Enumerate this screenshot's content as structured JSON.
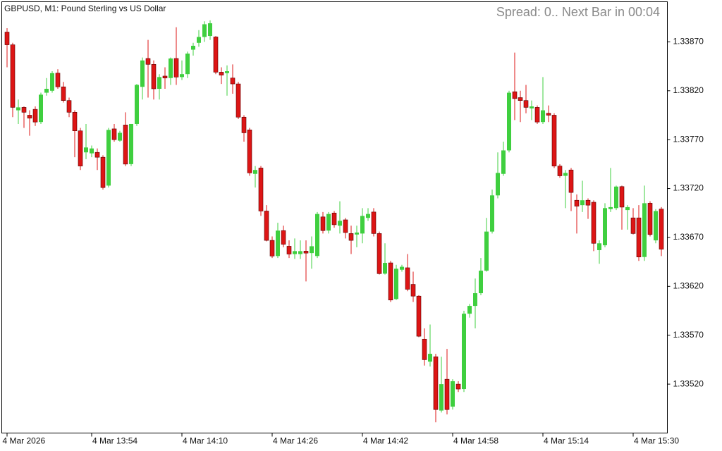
{
  "chart_data": {
    "type": "candlestick",
    "title": "GBPUSD, M1:  Pound Sterling vs US Dollar",
    "annotation": "Spread: 0.. Next Bar in 00:04",
    "up_color": "#3fcf3f",
    "down_color": "#dd1515",
    "categories": [
      "4 Mar 2026",
      null,
      null,
      null,
      null,
      null,
      null,
      null,
      null,
      null,
      null,
      null,
      null,
      null,
      null,
      "4 Mar 13:54",
      null,
      null,
      null,
      null,
      null,
      null,
      null,
      null,
      null,
      null,
      null,
      null,
      null,
      null,
      null,
      "4 Mar 14:10",
      null,
      null,
      null,
      null,
      null,
      null,
      null,
      null,
      null,
      null,
      null,
      null,
      null,
      null,
      null,
      "4 Mar 14:26",
      null,
      null,
      null,
      null,
      null,
      null,
      null,
      null,
      null,
      null,
      null,
      null,
      null,
      null,
      null,
      "4 Mar 14:42",
      null,
      null,
      null,
      null,
      null,
      null,
      null,
      null,
      null,
      null,
      null,
      null,
      null,
      null,
      null,
      "4 Mar 14:58",
      null,
      null,
      null,
      null,
      null,
      null,
      null,
      null,
      null,
      null,
      null,
      null,
      null,
      null,
      null,
      "4 Mar 15:14",
      null,
      null,
      null,
      null,
      null,
      null,
      null,
      null,
      null,
      null,
      null,
      null,
      null,
      null,
      null,
      "4 Mar 15:30",
      null,
      null,
      null,
      null,
      null
    ],
    "open": [
      1.3388,
      1.33867,
      1.338,
      1.33803,
      1.33795,
      1.33801,
      1.33788,
      1.33818,
      1.3382,
      1.33838,
      1.33824,
      1.3381,
      1.33798,
      1.33779,
      1.33757,
      1.33756,
      1.33757,
      1.33752,
      1.33723,
      1.33781,
      1.33769,
      1.33785,
      1.33745,
      1.33786,
      1.33824,
      1.33853,
      1.33847,
      1.33822,
      1.33835,
      1.33833,
      1.33853,
      1.33834,
      1.33837,
      1.33862,
      1.33869,
      1.33875,
      1.33876,
      1.33875,
      1.33839,
      1.33838,
      1.33833,
      1.33827,
      1.33793,
      1.3378,
      1.33735,
      1.33741,
      1.33697,
      1.33667,
      1.33651,
      1.33677,
      1.33661,
      1.33653,
      1.33653,
      1.33656,
      1.33654,
      1.33651,
      1.33691,
      1.33677,
      1.33695,
      1.33682,
      1.33688,
      1.33674,
      1.33673,
      1.33674,
      1.3369,
      1.33696,
      1.33674,
      1.33633,
      1.33644,
      1.33607,
      1.33637,
      1.33639,
      1.33622,
      1.3361,
      1.33566,
      1.33543,
      1.33548,
      1.33493,
      1.33525,
      1.33497,
      1.3352,
      1.33515,
      1.33592,
      1.336,
      1.33613,
      1.33636,
      1.33676,
      1.33713,
      1.33735,
      1.33759,
      1.33819,
      1.33813,
      1.3381,
      1.33802,
      1.33803,
      1.33788,
      1.33797,
      1.33795,
      1.33743,
      1.33733,
      1.33739,
      1.33708,
      1.33703,
      1.33708,
      1.33706,
      1.33657,
      1.33662,
      1.33699,
      1.337,
      1.33722,
      1.33698,
      1.3369,
      1.3369,
      1.3365,
      1.33705,
      1.33667,
      1.33699
    ],
    "high": [
      1.33884,
      1.33869,
      1.33811,
      1.33804,
      1.338,
      1.33804,
      1.33818,
      1.33833,
      1.3384,
      1.33842,
      1.33829,
      1.33813,
      1.338,
      1.33782,
      1.33786,
      1.33764,
      1.33761,
      1.33754,
      1.33782,
      1.33786,
      1.33779,
      1.33798,
      1.33786,
      1.33827,
      1.33854,
      1.33872,
      1.33851,
      1.33837,
      1.33844,
      1.33854,
      1.33885,
      1.33851,
      1.3386,
      1.33869,
      1.33882,
      1.33891,
      1.33892,
      1.33876,
      1.33844,
      1.33846,
      1.33847,
      1.33829,
      1.33795,
      1.33782,
      1.33743,
      1.33743,
      1.33703,
      1.33671,
      1.33685,
      1.33682,
      1.33667,
      1.33669,
      1.33667,
      1.33667,
      1.33671,
      1.33696,
      1.33696,
      1.33696,
      1.33697,
      1.33707,
      1.3369,
      1.33682,
      1.33682,
      1.337,
      1.337,
      1.337,
      1.33676,
      1.33664,
      1.33646,
      1.33642,
      1.33642,
      1.33653,
      1.33635,
      1.33611,
      1.33577,
      1.33581,
      1.33551,
      1.33548,
      1.33556,
      1.33525,
      1.33523,
      1.33595,
      1.33602,
      1.33628,
      1.33649,
      1.3369,
      1.33719,
      1.33757,
      1.33768,
      1.3382,
      1.33859,
      1.3382,
      1.33826,
      1.3381,
      1.33805,
      1.33834,
      1.33805,
      1.33797,
      1.33745,
      1.33739,
      1.33741,
      1.33714,
      1.33728,
      1.3371,
      1.33708,
      1.33667,
      1.33705,
      1.33741,
      1.33723,
      1.33723,
      1.33703,
      1.337,
      1.33703,
      1.33723,
      1.33707,
      1.33699,
      1.33701
    ],
    "low": [
      1.33844,
      1.33793,
      1.33786,
      1.33782,
      1.33774,
      1.33784,
      1.33786,
      1.33815,
      1.33818,
      1.33822,
      1.33808,
      1.33793,
      1.33752,
      1.33739,
      1.3375,
      1.33752,
      1.33739,
      1.33719,
      1.33721,
      1.33768,
      1.33768,
      1.33743,
      1.33743,
      1.33784,
      1.33811,
      1.33813,
      1.33811,
      1.33811,
      1.33822,
      1.33826,
      1.33826,
      1.33831,
      1.33833,
      1.33856,
      1.33865,
      1.3387,
      1.33872,
      1.33837,
      1.33827,
      1.33815,
      1.33817,
      1.33791,
      1.33768,
      1.33733,
      1.33721,
      1.33692,
      1.33666,
      1.33649,
      1.33649,
      1.3366,
      1.33649,
      1.33648,
      1.33648,
      1.33625,
      1.33638,
      1.33649,
      1.33674,
      1.33674,
      1.3368,
      1.33674,
      1.33669,
      1.33653,
      1.3366,
      1.33664,
      1.33687,
      1.33671,
      1.33632,
      1.33632,
      1.33604,
      1.33606,
      1.33635,
      1.33615,
      1.33604,
      1.33568,
      1.33539,
      1.33538,
      1.33481,
      1.33491,
      1.33489,
      1.33494,
      1.33512,
      1.33512,
      1.33588,
      1.33577,
      1.33611,
      1.33635,
      1.33674,
      1.3371,
      1.33733,
      1.33757,
      1.3379,
      1.33788,
      1.33797,
      1.3379,
      1.33786,
      1.33786,
      1.33788,
      1.33741,
      1.33731,
      1.337,
      1.33697,
      1.33674,
      1.33696,
      1.33689,
      1.33656,
      1.33643,
      1.3366,
      1.33696,
      1.33698,
      1.33678,
      1.33678,
      1.33673,
      1.33646,
      1.33646,
      1.33671,
      1.33664,
      1.33651
    ],
    "close": [
      1.33867,
      1.33803,
      1.33803,
      1.33798,
      1.33792,
      1.33788,
      1.33816,
      1.33822,
      1.33838,
      1.33824,
      1.3381,
      1.33798,
      1.33779,
      1.33743,
      1.33762,
      1.33761,
      1.33752,
      1.33721,
      1.3378,
      1.3377,
      1.33777,
      1.33745,
      1.33786,
      1.33826,
      1.33851,
      1.33847,
      1.33822,
      1.33834,
      1.33833,
      1.33853,
      1.33834,
      1.33837,
      1.33858,
      1.33866,
      1.33875,
      1.33888,
      1.33889,
      1.33839,
      1.33836,
      1.3384,
      1.33827,
      1.33793,
      1.33777,
      1.33736,
      1.33739,
      1.33697,
      1.33667,
      1.33651,
      1.33677,
      1.33663,
      1.33653,
      1.33656,
      1.33656,
      1.33654,
      1.33661,
      1.33694,
      1.33677,
      1.33694,
      1.33683,
      1.33687,
      1.33675,
      1.33667,
      1.33675,
      1.33692,
      1.33694,
      1.33674,
      1.33633,
      1.33644,
      1.33606,
      1.33638,
      1.3364,
      1.33617,
      1.3361,
      1.33569,
      1.33545,
      1.33551,
      1.33494,
      1.3352,
      1.33494,
      1.33523,
      1.33515,
      1.33592,
      1.336,
      1.33613,
      1.33636,
      1.33676,
      1.33713,
      1.33736,
      1.33759,
      1.33818,
      1.33812,
      1.3381,
      1.33803,
      1.33804,
      1.33788,
      1.338,
      1.33795,
      1.33743,
      1.33733,
      1.33736,
      1.33716,
      1.33702,
      1.33708,
      1.33703,
      1.33664,
      1.33664,
      1.337,
      1.33701,
      1.33722,
      1.33701,
      1.33701,
      1.33674,
      1.3365,
      1.33705,
      1.33673,
      1.33697,
      1.33658
    ],
    "ylim": [
      1.3347,
      1.33911
    ],
    "yticks": [
      {
        "value": 1.3352,
        "label": "1.33520"
      },
      {
        "value": 1.3357,
        "label": "1.33570"
      },
      {
        "value": 1.3362,
        "label": "1.33620"
      },
      {
        "value": 1.3367,
        "label": "1.33670"
      },
      {
        "value": 1.3372,
        "label": "1.33720"
      },
      {
        "value": 1.3377,
        "label": "1.33770"
      },
      {
        "value": 1.3382,
        "label": "1.33820"
      },
      {
        "value": 1.3387,
        "label": "1.33870"
      }
    ]
  }
}
